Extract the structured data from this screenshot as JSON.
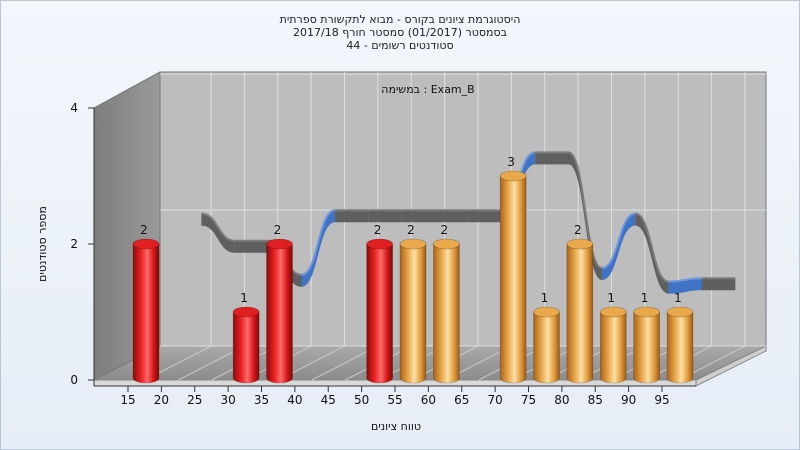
{
  "chart_data": {
    "type": "bar",
    "title": [
      "היסטוגרמת ציונים בקורס - מבוא לתקשורת ספרתית",
      "בסמסטר  (01/2017)  סמסטר חורף 2017/18",
      "סטודנטים רשומים - 44"
    ],
    "annotation": "במשימה : Exam_B",
    "xlabel": "טווח ציונים",
    "ylabel": "מספר סטודנטים",
    "x_ticks": [
      "15",
      "20",
      "25",
      "30",
      "35",
      "40",
      "45",
      "50",
      "55",
      "60",
      "65",
      "70",
      "75",
      "80",
      "85",
      "90",
      "95"
    ],
    "y_ticks": [
      "0",
      "2",
      "4"
    ],
    "ylim": [
      0,
      4
    ],
    "bars": [
      {
        "x": 15,
        "value": 2,
        "label": "2",
        "color": "#e02020"
      },
      {
        "x": 30,
        "value": 1,
        "label": "1",
        "color": "#e02020"
      },
      {
        "x": 35,
        "value": 2,
        "label": "2",
        "color": "#e02020"
      },
      {
        "x": 50,
        "value": 2,
        "label": "2",
        "color": "#e02020"
      },
      {
        "x": 55,
        "value": 2,
        "label": "2",
        "color": "#e9a94a"
      },
      {
        "x": 60,
        "value": 2,
        "label": "2",
        "color": "#e9a94a"
      },
      {
        "x": 70,
        "value": 3,
        "label": "3",
        "color": "#e9a94a"
      },
      {
        "x": 75,
        "value": 1,
        "label": "1",
        "color": "#e9a94a"
      },
      {
        "x": 80,
        "value": 2,
        "label": "2",
        "color": "#e9a94a"
      },
      {
        "x": 85,
        "value": 1,
        "label": "1",
        "color": "#e9a94a"
      },
      {
        "x": 90,
        "value": 1,
        "label": "1",
        "color": "#e9a94a"
      },
      {
        "x": 95,
        "value": 1,
        "label": "1",
        "color": "#e9a94a"
      }
    ],
    "curve": {
      "x": [
        20,
        25,
        30,
        35,
        40,
        45,
        50,
        55,
        60,
        65,
        70,
        75,
        80,
        85,
        90,
        95,
        100
      ],
      "y": [
        2.3,
        1.9,
        1.9,
        1.4,
        2.35,
        2.35,
        2.35,
        2.35,
        2.35,
        2.35,
        3.2,
        3.2,
        1.5,
        2.3,
        1.3,
        1.35,
        1.35
      ],
      "color_top": "#5a5a5a",
      "color_bottom": "#3a6fc4"
    }
  }
}
